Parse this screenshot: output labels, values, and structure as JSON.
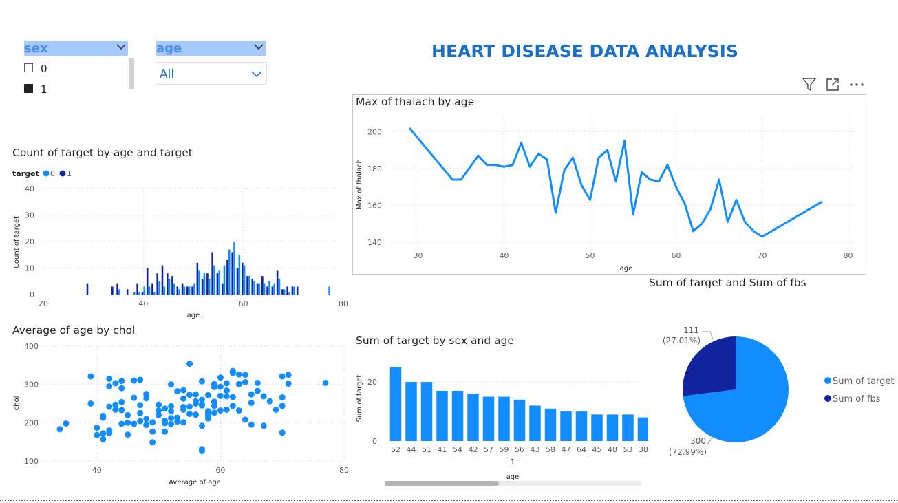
{
  "report": {
    "title": "HEART DISEASE DATA ANALYSIS"
  },
  "slicers": {
    "sex": {
      "title": "sex",
      "items": [
        {
          "label": "0",
          "checked": false
        },
        {
          "label": "1",
          "checked": true
        }
      ]
    },
    "age": {
      "title": "age",
      "value": "All"
    }
  },
  "visual_header": {
    "icons": [
      "filter-icon",
      "focus-mode-icon",
      "more-options-icon"
    ]
  },
  "colors": {
    "series0": "#118dff",
    "series1": "#12239e",
    "line": "#118dff",
    "scatter": "#118dff"
  },
  "chart_data": [
    {
      "id": "count_target",
      "type": "bar",
      "title": "Count of target by age and target",
      "legend_title": "target",
      "legend": [
        "0",
        "1"
      ],
      "xlabel": "age",
      "ylabel": "Count of target",
      "xlim": [
        20,
        80
      ],
      "ylim": [
        0,
        40
      ],
      "xticks": [
        20,
        40,
        60,
        80
      ],
      "yticks": [
        0,
        10,
        20,
        30,
        40
      ],
      "series": [
        {
          "name": "0",
          "points": [
            [
              35,
              2
            ],
            [
              38,
              1
            ],
            [
              39,
              1
            ],
            [
              40,
              3
            ],
            [
              41,
              3
            ],
            [
              42,
              1
            ],
            [
              43,
              5
            ],
            [
              44,
              3
            ],
            [
              45,
              6
            ],
            [
              46,
              4
            ],
            [
              47,
              2
            ],
            [
              48,
              3
            ],
            [
              49,
              3
            ],
            [
              50,
              4
            ],
            [
              51,
              9
            ],
            [
              52,
              8
            ],
            [
              53,
              6
            ],
            [
              54,
              11
            ],
            [
              55,
              9
            ],
            [
              56,
              11
            ],
            [
              57,
              17
            ],
            [
              58,
              20
            ],
            [
              59,
              15
            ],
            [
              60,
              11
            ],
            [
              61,
              7
            ],
            [
              62,
              5
            ],
            [
              63,
              4
            ],
            [
              64,
              4
            ],
            [
              65,
              5
            ],
            [
              66,
              4
            ],
            [
              67,
              6
            ],
            [
              68,
              2
            ],
            [
              69,
              1
            ],
            [
              70,
              3
            ],
            [
              71,
              0
            ],
            [
              77,
              3
            ]
          ]
        },
        {
          "name": "1",
          "points": [
            [
              29,
              4
            ],
            [
              34,
              3
            ],
            [
              35,
              4
            ],
            [
              37,
              2
            ],
            [
              39,
              4
            ],
            [
              40,
              1
            ],
            [
              41,
              10
            ],
            [
              42,
              4
            ],
            [
              43,
              8
            ],
            [
              44,
              11
            ],
            [
              45,
              8
            ],
            [
              46,
              7
            ],
            [
              47,
              3
            ],
            [
              48,
              4
            ],
            [
              49,
              3
            ],
            [
              50,
              3
            ],
            [
              51,
              12
            ],
            [
              52,
              6
            ],
            [
              53,
              8
            ],
            [
              54,
              16
            ],
            [
              55,
              8
            ],
            [
              56,
              4
            ],
            [
              57,
              13
            ],
            [
              58,
              16
            ],
            [
              59,
              10
            ],
            [
              60,
              12
            ],
            [
              61,
              7
            ],
            [
              62,
              6
            ],
            [
              63,
              4
            ],
            [
              64,
              7
            ],
            [
              65,
              3
            ],
            [
              66,
              3
            ],
            [
              67,
              9
            ],
            [
              68,
              2
            ],
            [
              69,
              3
            ],
            [
              70,
              3
            ],
            [
              71,
              3
            ]
          ]
        }
      ]
    },
    {
      "id": "max_thalach",
      "type": "line",
      "title": "Max of thalach by age",
      "xlabel": "age",
      "ylabel": "Max of thalach",
      "xlim": [
        27,
        81
      ],
      "ylim": [
        137,
        208
      ],
      "xticks": [
        30,
        40,
        50,
        60,
        70,
        80
      ],
      "yticks": [
        140,
        160,
        180,
        200
      ],
      "x": [
        29,
        34,
        35,
        37,
        38,
        39,
        40,
        41,
        42,
        43,
        44,
        45,
        46,
        47,
        48,
        49,
        50,
        51,
        52,
        53,
        54,
        55,
        56,
        57,
        58,
        59,
        60,
        61,
        62,
        63,
        64,
        65,
        66,
        67,
        68,
        69,
        70,
        77
      ],
      "y": [
        202,
        174,
        174,
        187,
        182,
        182,
        181,
        182,
        194,
        181,
        188,
        185,
        156,
        179,
        186,
        171,
        163,
        186,
        190,
        173,
        195,
        155,
        178,
        174,
        173,
        182,
        170,
        161,
        146,
        150,
        158,
        174,
        151,
        163,
        151,
        146,
        143,
        162
      ]
    },
    {
      "id": "avg_age_chol",
      "type": "scatter",
      "title": "Average of age by chol",
      "xlabel": "Average of age",
      "ylabel": "chol",
      "xlim": [
        31,
        80
      ],
      "ylim": [
        100,
        400
      ],
      "xticks": [
        40,
        60,
        80
      ],
      "yticks": [
        100,
        200,
        300,
        400
      ],
      "points": [
        [
          34,
          183
        ],
        [
          35,
          198
        ],
        [
          39,
          321
        ],
        [
          39,
          250
        ],
        [
          40,
          168
        ],
        [
          40,
          187
        ],
        [
          41,
          157
        ],
        [
          41,
          172
        ],
        [
          41,
          213
        ],
        [
          41,
          218
        ],
        [
          42,
          173
        ],
        [
          42,
          180
        ],
        [
          42,
          242
        ],
        [
          42,
          295
        ],
        [
          42,
          315
        ],
        [
          43,
          303
        ],
        [
          43,
          247
        ],
        [
          43,
          234
        ],
        [
          44,
          197
        ],
        [
          44,
          309
        ],
        [
          44,
          233
        ],
        [
          44,
          290
        ],
        [
          44,
          254
        ],
        [
          45,
          169
        ],
        [
          45,
          200
        ],
        [
          45,
          220
        ],
        [
          46,
          197
        ],
        [
          46,
          265
        ],
        [
          46,
          310
        ],
        [
          47,
          225
        ],
        [
          47,
          204
        ],
        [
          47,
          246
        ],
        [
          47,
          312
        ],
        [
          48,
          264
        ],
        [
          48,
          194
        ],
        [
          48,
          275
        ],
        [
          48,
          210
        ],
        [
          49,
          177
        ],
        [
          49,
          201
        ],
        [
          49,
          149
        ],
        [
          50,
          247
        ],
        [
          50,
          220
        ],
        [
          50,
          232
        ],
        [
          51,
          205
        ],
        [
          51,
          199
        ],
        [
          51,
          177
        ],
        [
          51,
          237
        ],
        [
          52,
          212
        ],
        [
          52,
          300
        ],
        [
          52,
          196
        ],
        [
          52,
          230
        ],
        [
          52,
          243
        ],
        [
          53,
          213
        ],
        [
          53,
          203
        ],
        [
          53,
          282
        ],
        [
          54,
          263
        ],
        [
          54,
          234
        ],
        [
          54,
          241
        ],
        [
          54,
          201
        ],
        [
          54,
          285
        ],
        [
          55,
          354
        ],
        [
          55,
          273
        ],
        [
          55,
          242
        ],
        [
          55,
          223
        ],
        [
          56,
          274
        ],
        [
          56,
          250
        ],
        [
          56,
          221
        ],
        [
          56,
          256
        ],
        [
          57,
          248
        ],
        [
          57,
          245
        ],
        [
          57,
          308
        ],
        [
          57,
          192
        ],
        [
          57,
          260
        ],
        [
          57,
          126
        ],
        [
          57,
          131
        ],
        [
          58,
          225
        ],
        [
          58,
          272
        ],
        [
          58,
          230
        ],
        [
          58,
          211
        ],
        [
          58,
          218
        ],
        [
          59,
          255
        ],
        [
          59,
          301
        ],
        [
          59,
          226
        ],
        [
          59,
          293
        ],
        [
          59,
          244
        ],
        [
          60,
          318
        ],
        [
          60,
          232
        ],
        [
          60,
          294
        ],
        [
          60,
          270
        ],
        [
          61,
          234
        ],
        [
          61,
          269
        ],
        [
          61,
          303
        ],
        [
          61,
          284
        ],
        [
          62,
          335
        ],
        [
          62,
          330
        ],
        [
          62,
          244
        ],
        [
          62,
          267
        ],
        [
          63,
          326
        ],
        [
          63,
          232
        ],
        [
          63,
          301
        ],
        [
          64,
          325
        ],
        [
          64,
          306
        ],
        [
          64,
          208
        ],
        [
          65,
          195
        ],
        [
          65,
          274
        ],
        [
          65,
          252
        ],
        [
          66,
          283
        ],
        [
          66,
          304
        ],
        [
          67,
          192
        ],
        [
          67,
          269
        ],
        [
          68,
          256
        ],
        [
          69,
          234
        ],
        [
          70,
          244
        ],
        [
          70,
          321
        ],
        [
          70,
          174
        ],
        [
          70,
          266
        ],
        [
          71,
          302
        ],
        [
          71,
          325
        ],
        [
          77,
          304
        ]
      ]
    },
    {
      "id": "sum_target_sex_age",
      "type": "bar",
      "title": "Sum of target by sex and age",
      "xlabel": "age",
      "ylabel": "Sum of target",
      "group_label": "1",
      "ylim": [
        0,
        27
      ],
      "yticks": [
        0,
        20
      ],
      "categories": [
        "52",
        "44",
        "51",
        "41",
        "54",
        "42",
        "57",
        "59",
        "56",
        "43",
        "58",
        "47",
        "64",
        "45",
        "48",
        "53",
        "38"
      ],
      "values": [
        25,
        20,
        20,
        17,
        17,
        16,
        15,
        15,
        14,
        12,
        11,
        10,
        10,
        9,
        9,
        9,
        8
      ]
    },
    {
      "id": "target_fbs",
      "type": "pie",
      "title": "Sum of target and Sum of fbs",
      "slices": [
        {
          "name": "Sum of target",
          "value": 300,
          "label": "300",
          "pct_label": "(72.99%)"
        },
        {
          "name": "Sum of fbs",
          "value": 111,
          "label": "111",
          "pct_label": "(27.01%)"
        }
      ]
    }
  ]
}
